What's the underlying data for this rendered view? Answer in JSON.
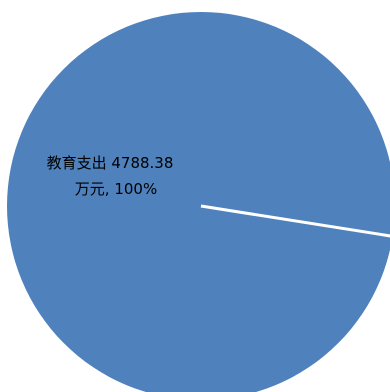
{
  "chart_data": {
    "type": "pie",
    "title": "",
    "slices": [
      {
        "label": "教育支出",
        "value": 4788.38,
        "unit": "万元",
        "percent": "100%",
        "label_line1": "教育支出 4788.38",
        "label_line2": "万元, 100%"
      }
    ],
    "colors": {
      "slice_fill": "#4f81bd",
      "divider": "#ffffff",
      "background": "#ffffff"
    },
    "legend": "none"
  }
}
